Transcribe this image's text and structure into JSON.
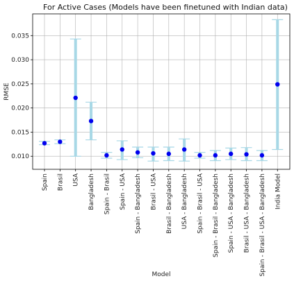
{
  "chart_data": {
    "type": "scatter",
    "title": "For Active Cases (Models have been finetuned with Indian data)",
    "xlabel": "Model",
    "ylabel": "RMSE",
    "ylim": [
      0.0073,
      0.0395
    ],
    "yticks": [
      "0.010",
      "0.015",
      "0.020",
      "0.025",
      "0.030",
      "0.035"
    ],
    "grid": true,
    "categories": [
      "Spain",
      "Brasil",
      "USA",
      "Bangladesh",
      "Spain - Brasil",
      "Spain - USA",
      "Spain - Bangladesh",
      "Brasil - USA",
      "Brasil - Bangladesh",
      "USA - Bangladesh",
      "Spain - Brasil - USA",
      "Spain - Brasil - Bangladesh",
      "Spain - USA - Bangladesh",
      "Brasil - USA - Bangladesh",
      "Spain - Brasil - USA - Bangladesh",
      "India Model"
    ],
    "series": [
      {
        "values": [
          0.0127,
          0.013,
          0.0221,
          0.0173,
          0.0102,
          0.0114,
          0.0108,
          0.0106,
          0.0105,
          0.0114,
          0.0102,
          0.0102,
          0.0105,
          0.0104,
          0.0102,
          0.0249
        ],
        "lower": [
          0.0124,
          0.0126,
          0.01,
          0.0134,
          0.0096,
          0.0093,
          0.0097,
          0.009,
          0.0091,
          0.009,
          0.0096,
          0.0091,
          0.0093,
          0.0091,
          0.0091,
          0.0114
        ],
        "upper": [
          0.0131,
          0.0134,
          0.0343,
          0.0212,
          0.0108,
          0.0132,
          0.0119,
          0.0119,
          0.0119,
          0.0136,
          0.0108,
          0.0112,
          0.0117,
          0.0118,
          0.0112,
          0.0383
        ]
      }
    ],
    "colors": {
      "point": "#0000ee",
      "errorbar": "#a8d8e6",
      "grid": "#b0b0b0"
    }
  }
}
